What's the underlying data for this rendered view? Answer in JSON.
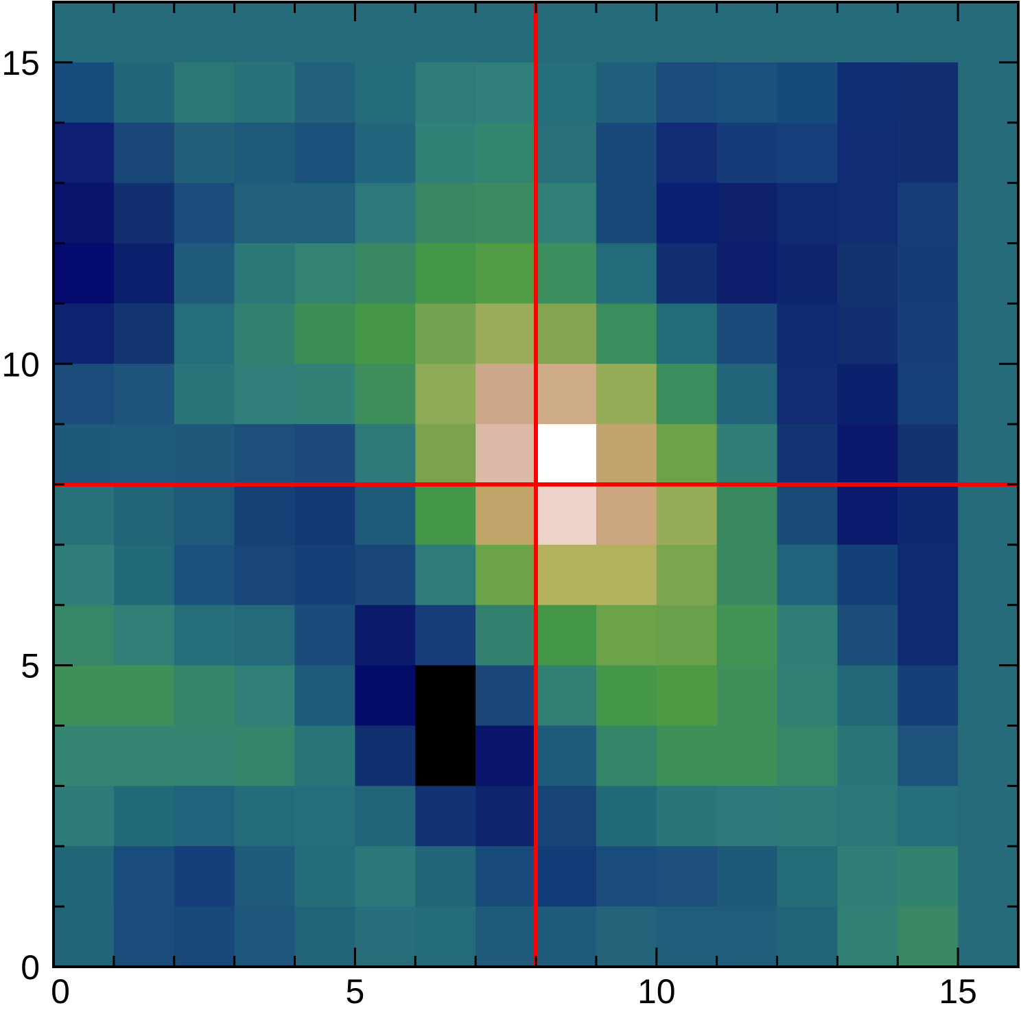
{
  "chart_data": {
    "type": "heatmap",
    "title": "",
    "xlabel": "",
    "ylabel": "",
    "xlim": [
      0,
      16
    ],
    "ylim": [
      0,
      16
    ],
    "x_ticks": [
      0,
      5,
      10,
      15
    ],
    "y_ticks": [
      0,
      5,
      10,
      15
    ],
    "x_tick_labels": [
      "0",
      "5",
      "10",
      "15"
    ],
    "y_tick_labels": [
      "0",
      "5",
      "10",
      "15"
    ],
    "colormap": "gist_earth",
    "crosshair": {
      "x": 8,
      "y": 8,
      "color": "#ff0000"
    },
    "grid_rows_top_to_bottom": [
      [
        "#256b7a",
        "#256b7a",
        "#256b7a",
        "#256b7a",
        "#256b7a",
        "#256b7a",
        "#256b7a",
        "#256b7a",
        "#256b7a",
        "#256b7a",
        "#256b7a",
        "#256b7a",
        "#256b7a",
        "#256b7a",
        "#256b7a",
        "#256b7a"
      ],
      [
        "#184b7e",
        "#236578",
        "#2b7777",
        "#2a7279",
        "#21617a",
        "#256c7b",
        "#2e7b7a",
        "#307f7a",
        "#266e7a",
        "#205f7c",
        "#1a4d7c",
        "#1b507c",
        "#174a7c",
        "#102e76",
        "#112f72",
        "#256b7a"
      ],
      [
        "#0e1f72",
        "#174677",
        "#215f79",
        "#205a7a",
        "#1a527c",
        "#21667c",
        "#318276",
        "#33866e",
        "#296f7a",
        "#19497b",
        "#112c75",
        "#153c78",
        "#163f7b",
        "#102c75",
        "#132f72",
        "#256b7a"
      ],
      [
        "#08146c",
        "#12306f",
        "#1a4d7c",
        "#215f7a",
        "#20607a",
        "#2c787a",
        "#3a8863",
        "#3c8a5f",
        "#308078",
        "#184878",
        "#0b1f70",
        "#0e206c",
        "#102a72",
        "#102c72",
        "#173d78",
        "#256b7a"
      ],
      [
        "#040a6e",
        "#0c1f6c",
        "#1f5a7b",
        "#2b7878",
        "#338272",
        "#3a8863",
        "#449648",
        "#539c46",
        "#3d8e5e",
        "#236a7a",
        "#122f72",
        "#0d1e6c",
        "#0f266f",
        "#13336e",
        "#163c78",
        "#256b7a"
      ],
      [
        "#0e2470",
        "#133670",
        "#256d7c",
        "#328272",
        "#3e8d55",
        "#459646",
        "#73a34e",
        "#9bac5a",
        "#84a452",
        "#3d8e5e",
        "#246b7a",
        "#1a4b7b",
        "#0f2a72",
        "#122f72",
        "#173e78",
        "#256b7a"
      ],
      [
        "#1c4c7b",
        "#1e547b",
        "#2a747a",
        "#307f7a",
        "#318176",
        "#3e8e5c",
        "#8faa56",
        "#cda98a",
        "#cdaa88",
        "#96ac58",
        "#3d8e5e",
        "#22647a",
        "#112c72",
        "#0b206c",
        "#173f78",
        "#256b7a"
      ],
      [
        "#1e587b",
        "#1f597b",
        "#1f587b",
        "#1d4f7b",
        "#1c4b7b",
        "#2d7878",
        "#7ba24f",
        "#ddb9a8",
        "#ffffff",
        "#c3a46f",
        "#6ca24a",
        "#307e76",
        "#123473",
        "#0b196c",
        "#133370",
        "#256b7a"
      ],
      [
        "#2a7279",
        "#236578",
        "#1f5a7a",
        "#164177",
        "#133873",
        "#1f5a7b",
        "#449648",
        "#c0a46a",
        "#edd2c9",
        "#cba57d",
        "#96ac58",
        "#3a8860",
        "#1b4c78",
        "#0b1b6e",
        "#102870",
        "#256b7a"
      ],
      [
        "#2f7e7a",
        "#236a79",
        "#1b517a",
        "#18467a",
        "#163f78",
        "#1a477a",
        "#2e7b7a",
        "#6ca24a",
        "#b1b15e",
        "#b1b15e",
        "#7ca54f",
        "#3a8860",
        "#21637a",
        "#144078",
        "#0f2a72",
        "#256b7a"
      ],
      [
        "#388668",
        "#308078",
        "#266e7a",
        "#256a7a",
        "#1b4b7b",
        "#0c1a6c",
        "#163d78",
        "#32816e",
        "#449648",
        "#6ca24a",
        "#69a14b",
        "#419254",
        "#2f7f78",
        "#1a4d78",
        "#0f2a72",
        "#256b7a"
      ],
      [
        "#3e8f58",
        "#3e8f58",
        "#358668",
        "#308078",
        "#1f5a7b",
        "#040c6a",
        "#000000",
        "#1a4778",
        "#318072",
        "#449648",
        "#4f9b45",
        "#3e8f58",
        "#318076",
        "#226878",
        "#163e78",
        "#256b7a"
      ],
      [
        "#338470",
        "#338470",
        "#338470",
        "#35856a",
        "#297478",
        "#10306f",
        "#000000",
        "#09166c",
        "#1f5b7a",
        "#358668",
        "#3e8f58",
        "#3e8f58",
        "#378668",
        "#297578",
        "#1d527a",
        "#256b7a"
      ],
      [
        "#2c7a7a",
        "#236a79",
        "#21637b",
        "#256c7a",
        "#266e7a",
        "#22647a",
        "#113273",
        "#0e256e",
        "#184578",
        "#226978",
        "#2a7579",
        "#2c787a",
        "#2d7a7a",
        "#2b7679",
        "#256e7a",
        "#256b7a"
      ],
      [
        "#22667a",
        "#1a4d7b",
        "#163e78",
        "#1f5a7b",
        "#246c79",
        "#2b777a",
        "#23667a",
        "#184a7a",
        "#133b78",
        "#1b4d7c",
        "#1c4f7c",
        "#1f597a",
        "#256c79",
        "#2f7e78",
        "#328270",
        "#256b7a"
      ],
      [
        "#236578",
        "#1a4c7c",
        "#184879",
        "#1e557b",
        "#22657a",
        "#276e7a",
        "#246c79",
        "#1f5a7b",
        "#1f5b7a",
        "#22637a",
        "#1f5d7a",
        "#1f5d7b",
        "#236578",
        "#318076",
        "#398764",
        "#256b7a"
      ]
    ]
  }
}
